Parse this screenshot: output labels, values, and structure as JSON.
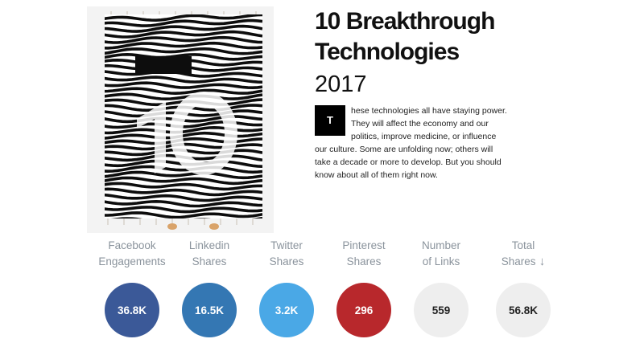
{
  "article": {
    "title_line1": "10 Breakthrough",
    "title_line2": "Technologies",
    "year": "2017",
    "dropcap": "T",
    "intro": "hese technologies all have staying power. They will affect the economy and our politics, improve medicine, or influence our culture. Some are unfolding now; others will take a decade or more to develop. But you should know about all of them right now."
  },
  "hero_image": {
    "icon": "woven-blanket-10-image"
  },
  "metrics": [
    {
      "label_line1": "Facebook",
      "label_line2": "Engagements",
      "value": "36.8K",
      "bg": "#3b5998",
      "fg": "#ffffff"
    },
    {
      "label_line1": "Linkedin",
      "label_line2": "Shares",
      "value": "16.5K",
      "bg": "#3477b3",
      "fg": "#ffffff"
    },
    {
      "label_line1": "Twitter",
      "label_line2": "Shares",
      "value": "3.2K",
      "bg": "#4aa8e6",
      "fg": "#ffffff"
    },
    {
      "label_line1": "Pinterest",
      "label_line2": "Shares",
      "value": "296",
      "bg": "#b8282c",
      "fg": "#ffffff"
    },
    {
      "label_line1": "Number",
      "label_line2": "of Links",
      "value": "559",
      "bg": "#eeeeee",
      "fg": "#222222"
    },
    {
      "label_line1": "Total",
      "label_line2": "Shares",
      "value": "56.8K",
      "bg": "#eeeeee",
      "fg": "#222222",
      "sort_icon": "↓"
    }
  ]
}
